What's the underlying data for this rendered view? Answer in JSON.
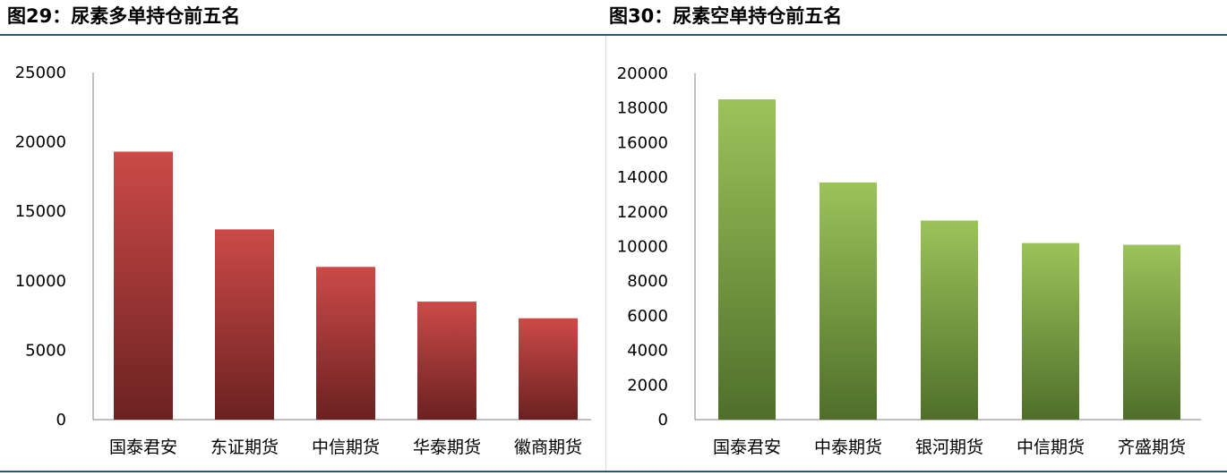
{
  "figures": [
    {
      "prefix": "图29：",
      "title": "尿素多单持仓前五名"
    },
    {
      "prefix": "图30：",
      "title": "尿素空单持仓前五名"
    }
  ],
  "colors": {
    "rule": "#1f5f7a",
    "red_top": "#cc4a48",
    "red_bottom": "#6b2121",
    "green_top": "#9bc35a",
    "green_bottom": "#4f6f2a",
    "axis": "#7f7f7f"
  },
  "chart_data": [
    {
      "type": "bar",
      "categories": [
        "国泰君安",
        "东证期货",
        "中信期货",
        "华泰期货",
        "徽商期货"
      ],
      "values": [
        19300,
        13700,
        11000,
        8500,
        7300
      ],
      "ylim": [
        0,
        25000
      ],
      "yticks": [
        "0",
        "5000",
        "10000",
        "15000",
        "20000",
        "25000"
      ],
      "grid": false,
      "legend": "none"
    },
    {
      "type": "bar",
      "categories": [
        "国泰君安",
        "中泰期货",
        "银河期货",
        "中信期货",
        "齐盛期货"
      ],
      "values": [
        18500,
        13700,
        11500,
        10200,
        10100
      ],
      "ylim": [
        0,
        20000
      ],
      "yticks": [
        "0",
        "2000",
        "4000",
        "6000",
        "8000",
        "10000",
        "12000",
        "14000",
        "16000",
        "18000",
        "20000"
      ],
      "grid": false,
      "legend": "none"
    }
  ]
}
